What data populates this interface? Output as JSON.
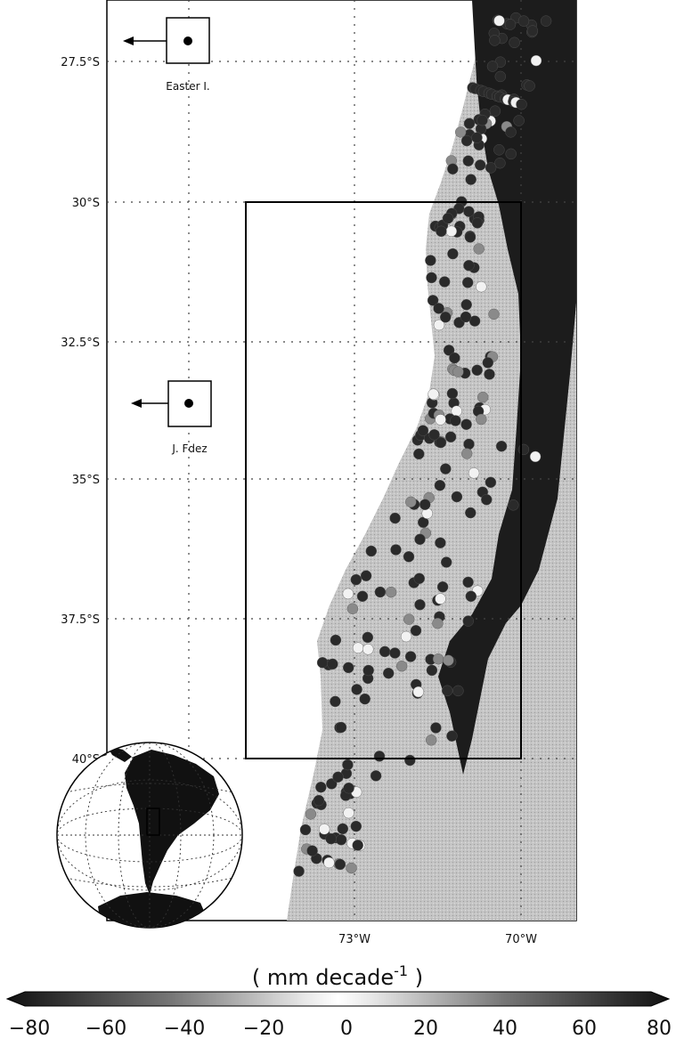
{
  "map": {
    "lat_ticks": [
      "27.5°S",
      "30°S",
      "32.5°S",
      "35°S",
      "37.5°S",
      "40°S"
    ],
    "lon_ticks": [
      "73°W",
      "70°W"
    ],
    "islands": [
      {
        "name": "Easter I."
      },
      {
        "name": "J. Fdez"
      }
    ],
    "colors": {
      "land": "#c8c8c8",
      "andes": "#1a1a1a",
      "ocean": "#ffffff",
      "grid": "#444444"
    },
    "inset": "orthographic-globe-south-america"
  },
  "colorbar": {
    "unit_label": "( mm decade",
    "unit_exponent": "-1",
    "unit_close": " )",
    "ticks": [
      "−80",
      "−60",
      "−40",
      "−20",
      "0",
      "20",
      "40",
      "60",
      "80"
    ]
  }
}
